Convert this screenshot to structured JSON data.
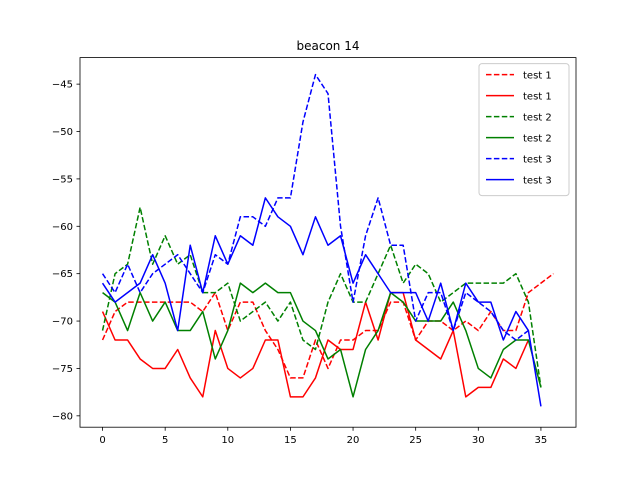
{
  "chart_data": {
    "type": "line",
    "title": "beacon 14",
    "xlabel": "",
    "ylabel": "",
    "xlim": [
      -1.8,
      37.8
    ],
    "ylim": [
      -81.2,
      -42.2
    ],
    "xticks": [
      0,
      5,
      10,
      15,
      20,
      25,
      30,
      35
    ],
    "yticks": [
      -80,
      -75,
      -70,
      -65,
      -60,
      -55,
      -50,
      -45
    ],
    "grid": false,
    "legend_position": "top-right",
    "series": [
      {
        "name": "test 1",
        "color": "#ff0000",
        "style": "dashed",
        "x": [
          0,
          1,
          2,
          3,
          4,
          5,
          6,
          7,
          8,
          9,
          10,
          11,
          12,
          13,
          14,
          15,
          16,
          17,
          18,
          19,
          20,
          21,
          22,
          23,
          24,
          25,
          26,
          27,
          28,
          29,
          30,
          31,
          32,
          33,
          34,
          35,
          36
        ],
        "values": [
          -72,
          -69,
          -68,
          -68,
          -68,
          -68,
          -68,
          -68,
          -69,
          -67,
          -71,
          -68,
          -68,
          -71,
          -73,
          -76,
          -76,
          -72,
          -75,
          -72,
          -72,
          -71,
          -71,
          -68,
          -68,
          -72,
          -70,
          -70,
          -71,
          -70,
          -71,
          -69,
          -71,
          -71,
          -67,
          -66,
          -65
        ]
      },
      {
        "name": "test 1",
        "color": "#ff0000",
        "style": "solid",
        "x": [
          0,
          1,
          2,
          3,
          4,
          5,
          6,
          7,
          8,
          9,
          10,
          11,
          12,
          13,
          14,
          15,
          16,
          17,
          18,
          19,
          20,
          21,
          22,
          23,
          24,
          25,
          26,
          27,
          28,
          29,
          30,
          31,
          32,
          33,
          34
        ],
        "values": [
          -69,
          -72,
          -72,
          -74,
          -75,
          -75,
          -73,
          -76,
          -78,
          -71,
          -75,
          -76,
          -75,
          -72,
          -72,
          -78,
          -78,
          -76,
          -72,
          -73,
          -73,
          -68,
          -72,
          -67,
          -67,
          -72,
          -73,
          -74,
          -71,
          -78,
          -77,
          -77,
          -74,
          -75,
          -72
        ]
      },
      {
        "name": "test 2",
        "color": "#008000",
        "style": "dashed",
        "x": [
          0,
          1,
          2,
          3,
          4,
          5,
          6,
          7,
          8,
          9,
          10,
          11,
          12,
          13,
          14,
          15,
          16,
          17,
          18,
          19,
          20,
          21,
          22,
          23,
          24,
          25,
          26,
          27,
          28,
          29,
          30,
          31,
          32,
          33,
          34,
          35
        ],
        "values": [
          -71,
          -65,
          -64,
          -58,
          -64,
          -61,
          -64,
          -63,
          -67,
          -67,
          -66,
          -70,
          -69,
          -68,
          -70,
          -68,
          -72,
          -73,
          -68,
          -65,
          -68,
          -68,
          -65,
          -62,
          -66,
          -64,
          -65,
          -68,
          -67,
          -66,
          -66,
          -66,
          -66,
          -65,
          -68,
          -77
        ]
      },
      {
        "name": "test 2",
        "color": "#008000",
        "style": "solid",
        "x": [
          0,
          1,
          2,
          3,
          4,
          5,
          6,
          7,
          8,
          9,
          10,
          11,
          12,
          13,
          14,
          15,
          16,
          17,
          18,
          19,
          20,
          21,
          22,
          23,
          24,
          25,
          26,
          27,
          28,
          29,
          30,
          31,
          32,
          33,
          34,
          35
        ],
        "values": [
          -67,
          -68,
          -71,
          -67,
          -70,
          -68,
          -71,
          -71,
          -69,
          -74,
          -71,
          -66,
          -67,
          -66,
          -67,
          -67,
          -70,
          -71,
          -74,
          -73,
          -78,
          -73,
          -71,
          -67,
          -68,
          -70,
          -70,
          -70,
          -68,
          -71,
          -75,
          -76,
          -73,
          -72,
          -72,
          -77
        ]
      },
      {
        "name": "test 3",
        "color": "#0000ff",
        "style": "dashed",
        "x": [
          0,
          1,
          2,
          3,
          4,
          5,
          6,
          7,
          8,
          9,
          10,
          11,
          12,
          13,
          14,
          15,
          16,
          17,
          18,
          19,
          20,
          21,
          22,
          23,
          24,
          25,
          26,
          27,
          28,
          29,
          30,
          31,
          32,
          33,
          34
        ],
        "values": [
          -65,
          -67,
          -64,
          -67,
          -65,
          -64,
          -63,
          -65,
          -67,
          -63,
          -64,
          -59,
          -59,
          -60,
          -57,
          -57,
          -49,
          -44,
          -46,
          -60,
          -68,
          -61,
          -57,
          -62,
          -62,
          -70,
          -67,
          -67,
          -71,
          -67,
          -68,
          -69,
          -71,
          -72,
          -71
        ]
      },
      {
        "name": "test 3",
        "color": "#0000ff",
        "style": "solid",
        "x": [
          0,
          1,
          2,
          3,
          4,
          5,
          6,
          7,
          8,
          9,
          10,
          11,
          12,
          13,
          14,
          15,
          16,
          17,
          18,
          19,
          20,
          21,
          22,
          23,
          24,
          25,
          26,
          27,
          28,
          29,
          30,
          31,
          32,
          33,
          34,
          35
        ],
        "values": [
          -66,
          -68,
          -67,
          -66,
          -63,
          -66,
          -71,
          -62,
          -67,
          -61,
          -64,
          -61,
          -62,
          -57,
          -59,
          -60,
          -63,
          -59,
          -62,
          -61,
          -66,
          -63,
          -65,
          -67,
          -67,
          -67,
          -70,
          -66,
          -71,
          -66,
          -68,
          -68,
          -72,
          -69,
          -71,
          -79
        ]
      }
    ]
  }
}
